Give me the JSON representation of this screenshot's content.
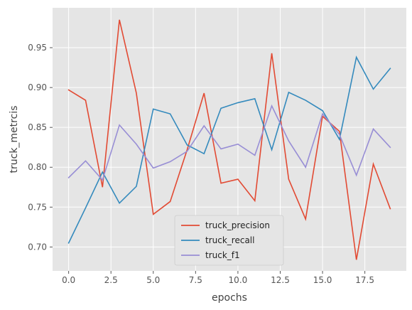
{
  "chart_data": {
    "type": "line",
    "xlabel": "epochs",
    "ylabel": "truck_metrcis",
    "xlim": [
      -0.95,
      19.95
    ],
    "ylim": [
      0.67,
      1.0
    ],
    "grid": true,
    "legend_position": "lower-center",
    "x_ticks": [
      "0.0",
      "2.5",
      "5.0",
      "7.5",
      "10.0",
      "12.5",
      "15.0",
      "17.5"
    ],
    "x_tick_values": [
      0,
      2.5,
      5,
      7.5,
      10,
      12.5,
      15,
      17.5
    ],
    "y_ticks": [
      "0.70",
      "0.75",
      "0.80",
      "0.85",
      "0.90",
      "0.95"
    ],
    "y_tick_values": [
      0.7,
      0.75,
      0.8,
      0.85,
      0.9,
      0.95
    ],
    "x": [
      0,
      1,
      2,
      3,
      4,
      5,
      6,
      7,
      8,
      9,
      10,
      11,
      12,
      13,
      14,
      15,
      16,
      17,
      18,
      19
    ],
    "series": [
      {
        "name": "truck_precision",
        "color": "#E24A33",
        "values": [
          0.897,
          0.884,
          0.775,
          0.985,
          0.893,
          0.741,
          0.757,
          0.822,
          0.893,
          0.78,
          0.785,
          0.758,
          0.943,
          0.785,
          0.735,
          0.864,
          0.845,
          0.684,
          0.804,
          0.748
        ]
      },
      {
        "name": "truck_recall",
        "color": "#348ABD",
        "values": [
          0.705,
          0.749,
          0.794,
          0.755,
          0.776,
          0.873,
          0.867,
          0.828,
          0.817,
          0.874,
          0.881,
          0.886,
          0.822,
          0.894,
          0.884,
          0.871,
          0.835,
          0.938,
          0.898,
          0.924
        ]
      },
      {
        "name": "truck_f1",
        "color": "#988ED5",
        "values": [
          0.787,
          0.808,
          0.784,
          0.853,
          0.829,
          0.799,
          0.807,
          0.82,
          0.852,
          0.823,
          0.829,
          0.815,
          0.877,
          0.833,
          0.8,
          0.867,
          0.841,
          0.79,
          0.848,
          0.825
        ]
      }
    ]
  }
}
